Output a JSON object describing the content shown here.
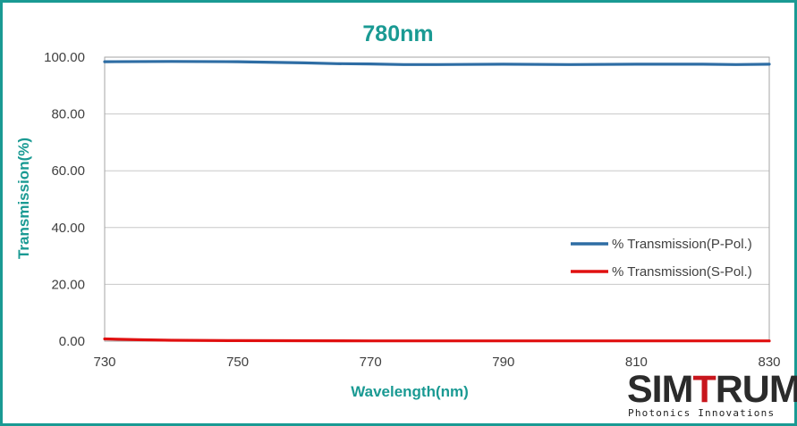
{
  "chart_data": {
    "type": "line",
    "title": "780nm",
    "xlabel": "Wavelength(nm)",
    "ylabel": "Transmission(%)",
    "xlim": [
      730,
      830
    ],
    "ylim": [
      0,
      100
    ],
    "x_ticks": [
      "730",
      "750",
      "770",
      "790",
      "810",
      "830"
    ],
    "y_ticks": [
      "0.00",
      "20.00",
      "40.00",
      "60.00",
      "80.00",
      "100.00"
    ],
    "grid": true,
    "legend_position": "bottom-right",
    "series": [
      {
        "name": "% Transmission(P-Pol.)",
        "color": "#2e6da4",
        "points": [
          [
            730,
            98.4
          ],
          [
            740,
            98.5
          ],
          [
            750,
            98.4
          ],
          [
            760,
            98.0
          ],
          [
            765,
            97.7
          ],
          [
            770,
            97.6
          ],
          [
            775,
            97.4
          ],
          [
            780,
            97.4
          ],
          [
            790,
            97.5
          ],
          [
            800,
            97.4
          ],
          [
            810,
            97.5
          ],
          [
            820,
            97.5
          ],
          [
            825,
            97.4
          ],
          [
            830,
            97.5
          ]
        ]
      },
      {
        "name": "% Transmission(S-Pol.)",
        "color": "#e01010",
        "points": [
          [
            730,
            0.8
          ],
          [
            735,
            0.5
          ],
          [
            740,
            0.3
          ],
          [
            750,
            0.2
          ],
          [
            770,
            0.1
          ],
          [
            790,
            0.1
          ],
          [
            810,
            0.1
          ],
          [
            830,
            0.1
          ]
        ]
      }
    ]
  },
  "logo": {
    "brand_part1": "SIM",
    "brand_part2": "T",
    "brand_part3": "RUM",
    "tagline": "Photonics Innovations"
  }
}
